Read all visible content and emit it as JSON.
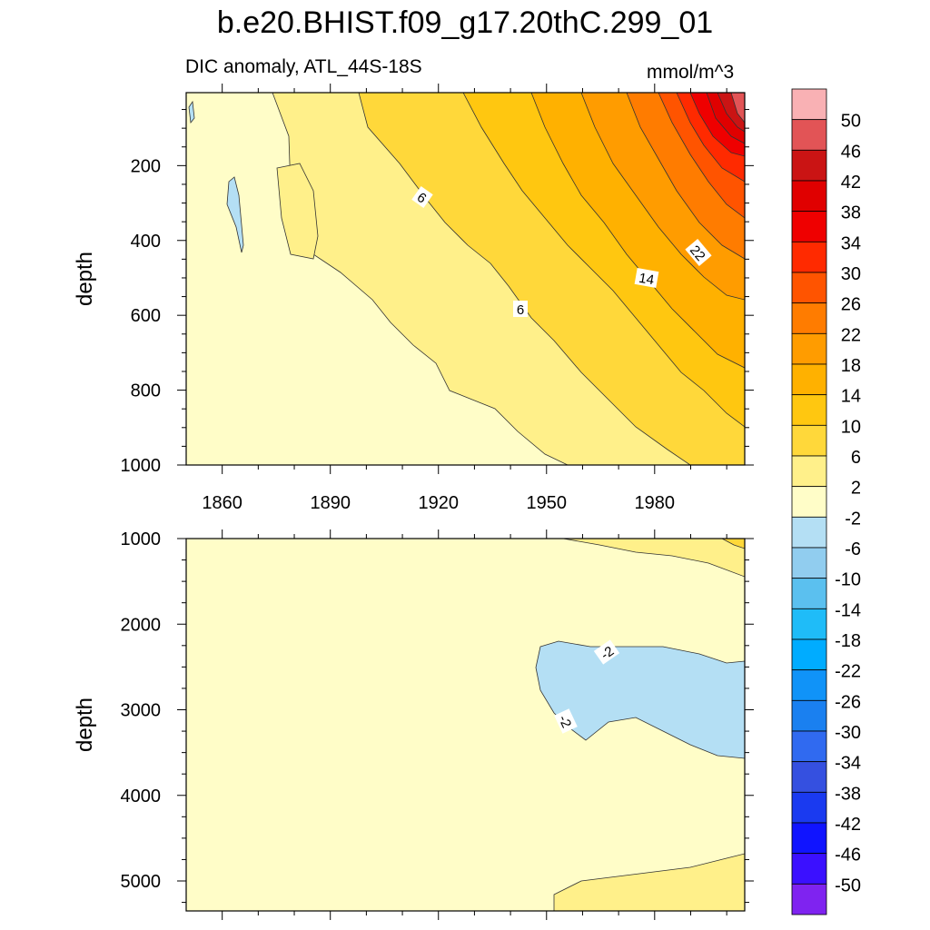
{
  "title": "b.e20.BHIST.f09_g17.20thC.299_01",
  "subtitle_left": "DIC anomaly, ATL_44S-18S",
  "subtitle_right": "mmol/m^3",
  "colorbar": {
    "levels": [
      "50",
      "46",
      "42",
      "38",
      "34",
      "30",
      "26",
      "22",
      "18",
      "14",
      "10",
      "6",
      "2",
      "-2",
      "-6",
      "-10",
      "-14",
      "-18",
      "-22",
      "-26",
      "-30",
      "-34",
      "-38",
      "-42",
      "-46",
      "-50"
    ],
    "colors": [
      "#f9b1b4",
      "#e25456",
      "#ca1414",
      "#e00000",
      "#ef0000",
      "#ff2a00",
      "#ff5400",
      "#ff7c00",
      "#ff9c00",
      "#ffb100",
      "#ffc710",
      "#ffd83a",
      "#fff08a",
      "#fffdc8",
      "#b4dff4",
      "#91cdef",
      "#5bc0ef",
      "#1fbcf8",
      "#00acff",
      "#1093f8",
      "#1a80f0",
      "#306af0",
      "#3550e0",
      "#1a3af0",
      "#1014ff",
      "#3b10ff",
      "#7f23f0"
    ]
  },
  "chart_data": [
    {
      "type": "contour",
      "panel": "upper",
      "ylabel": "depth",
      "xlim": [
        1850,
        2005
      ],
      "ylim": [
        1000,
        5
      ],
      "xticks": [
        1860,
        1890,
        1920,
        1950,
        1980
      ],
      "yticks": [
        200,
        400,
        600,
        800,
        1000
      ],
      "contour_labels": [
        "6",
        "6",
        "14",
        "22"
      ],
      "description_levels": "anomaly increases toward surface and recent years; max ~50 near 2000 at surface"
    },
    {
      "type": "contour",
      "panel": "lower",
      "ylabel": "depth",
      "xlim": [
        1850,
        2005
      ],
      "ylim": [
        5350,
        1000
      ],
      "yticks": [
        1000,
        2000,
        3000,
        4000,
        5000
      ],
      "contour_labels": [
        "-2",
        "-2"
      ]
    }
  ]
}
